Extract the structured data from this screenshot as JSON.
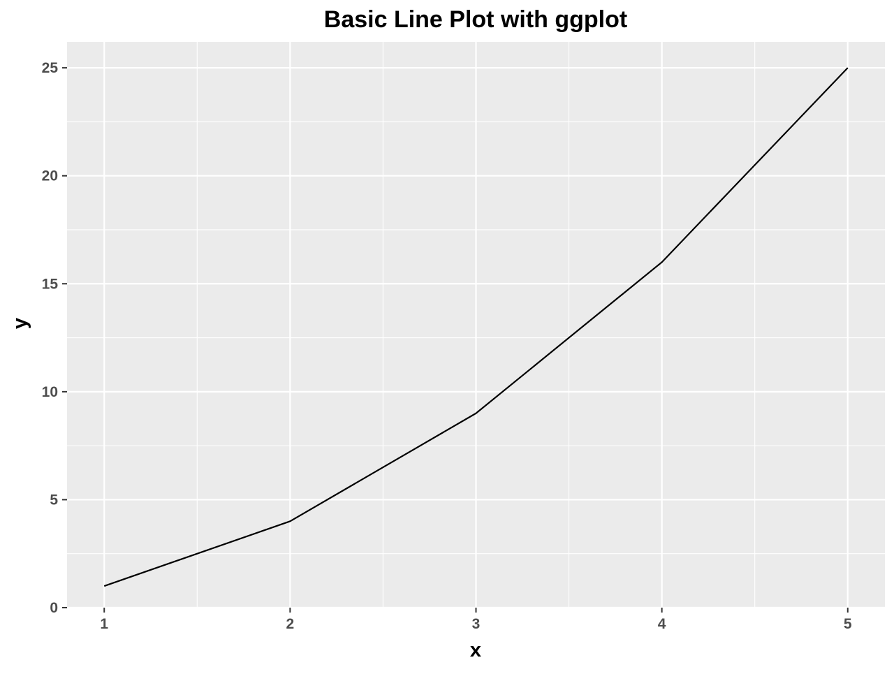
{
  "chart_data": {
    "type": "line",
    "title": "Basic Line Plot with ggplot",
    "xlabel": "x",
    "ylabel": "y",
    "x": [
      1,
      2,
      3,
      4,
      5
    ],
    "series": [
      {
        "values": [
          1,
          4,
          9,
          16,
          25
        ],
        "color": "#000000"
      }
    ],
    "xlim": [
      0.8,
      5.2
    ],
    "ylim": [
      0,
      26.2
    ],
    "x_ticks": [
      1,
      2,
      3,
      4,
      5
    ],
    "x_tick_labels": [
      "1",
      "2",
      "3",
      "4",
      "5"
    ],
    "y_ticks": [
      0,
      5,
      10,
      15,
      20,
      25
    ],
    "y_tick_labels": [
      "0",
      "5",
      "10",
      "15",
      "20",
      "25"
    ],
    "x_minor_ticks": [
      1.5,
      2.5,
      3.5,
      4.5
    ],
    "y_minor_ticks": [
      2.5,
      7.5,
      12.5,
      17.5,
      22.5
    ],
    "grid": true,
    "legend": "none",
    "panel_background": "#ebebeb",
    "grid_color": "#ffffff",
    "tick_color": "#333333",
    "tick_label_color": "#4d4d4d"
  }
}
